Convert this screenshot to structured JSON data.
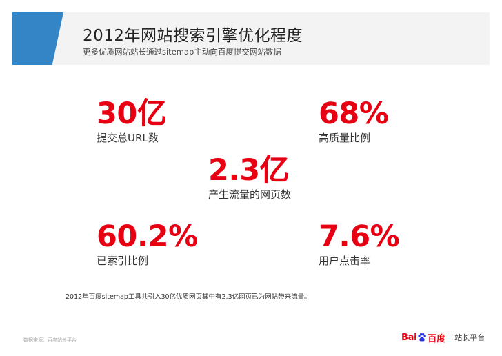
{
  "header": {
    "title": "2012年网站搜索引擎优化程度",
    "subtitle": "更多优质网站站长通过sitemap主动向百度提交网站数据"
  },
  "stats": [
    {
      "value": "30亿",
      "label": "提交总URL数"
    },
    {
      "value": "68%",
      "label": "高质量比例"
    },
    {
      "value": "2.3亿",
      "label": "产生流量的网页数"
    },
    {
      "value": "60.2%",
      "label": "已索引比例"
    },
    {
      "value": "7.6%",
      "label": "用户点击率"
    }
  ],
  "footnote": "2012年百度sitemap工具共引入30亿优质网页其中有2.3亿网页已为网站带来流量。",
  "source": "数据来源：百度站长平台",
  "brand": {
    "bai": "Bai",
    "du": "百度",
    "platform": "站长平台",
    "logo_icon": "baidu-paw-icon"
  },
  "colors": {
    "accent_blue": "#3385c6",
    "stat_red": "#e60012",
    "header_band": "#f3f3f3"
  }
}
